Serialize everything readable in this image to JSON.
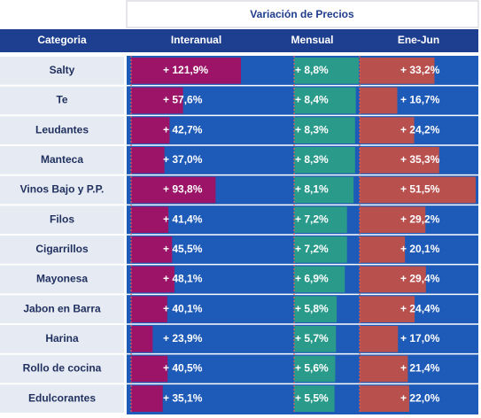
{
  "chart_data": {
    "type": "table-bars",
    "title": "Variación de Precios",
    "category_header": "Categoria",
    "categories": [
      "Salty",
      "Te",
      "Leudantes",
      "Manteca",
      "Vinos Bajo y P.P.",
      "Filos",
      "Cigarrillos",
      "Mayonesa",
      "Jabon en Barra",
      "Harina",
      "Rollo de cocina",
      "Edulcorantes"
    ],
    "series": [
      {
        "name": "Interanual",
        "color": "#9b1467",
        "values": [
          121.9,
          57.6,
          42.7,
          37.0,
          93.8,
          41.4,
          45.5,
          48.1,
          40.1,
          23.9,
          40.5,
          35.1
        ],
        "value_labels": [
          "+ 121,9%",
          "+ 57,6%",
          "+ 42,7%",
          "+ 37,0%",
          "+ 93,8%",
          "+ 41,4%",
          "+ 45,5%",
          "+ 48,1%",
          "+ 40,1%",
          "+ 23,9%",
          "+ 40,5%",
          "+ 35,1%"
        ]
      },
      {
        "name": "Mensual",
        "color": "#2a9a8a",
        "values": [
          8.8,
          8.4,
          8.3,
          8.3,
          8.1,
          7.2,
          7.2,
          6.9,
          5.8,
          5.7,
          5.6,
          5.5
        ],
        "value_labels": [
          "+ 8,8%",
          "+ 8,4%",
          "+ 8,3%",
          "+ 8,3%",
          "+ 8,1%",
          "+ 7,2%",
          "+ 7,2%",
          "+ 6,9%",
          "+ 5,8%",
          "+ 5,7%",
          "+ 5,6%",
          "+ 5,5%"
        ]
      },
      {
        "name": "Ene-Jun",
        "color": "#b8504e",
        "values": [
          33.2,
          16.7,
          24.2,
          35.3,
          51.5,
          29.2,
          20.1,
          29.4,
          24.4,
          17.0,
          21.4,
          22.0
        ],
        "value_labels": [
          "+ 33,2%",
          "+ 16,7%",
          "+ 24,2%",
          "+ 35,3%",
          "+ 51,5%",
          "+ 29,2%",
          "+ 20,1%",
          "+ 29,4%",
          "+ 24,4%",
          "+ 17,0%",
          "+ 21,4%",
          "+ 22,0%"
        ]
      }
    ]
  }
}
